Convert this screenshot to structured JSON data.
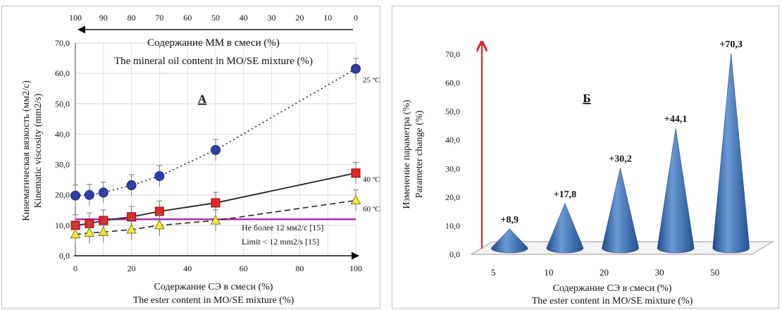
{
  "chart_data": [
    {
      "type": "line",
      "panel_label": "А",
      "x": [
        0,
        5,
        10,
        20,
        30,
        50,
        100
      ],
      "xlim": [
        0,
        100
      ],
      "ylim": [
        0,
        70
      ],
      "x_ticks": [
        "0",
        "20",
        "40",
        "60",
        "80",
        "100"
      ],
      "y_ticks": [
        "0,0",
        "10,0",
        "20,0",
        "30,0",
        "40,0",
        "50,0",
        "60,0",
        "70,0"
      ],
      "top_ticks": [
        "100",
        "90",
        "80",
        "70",
        "60",
        "50",
        "40",
        "30",
        "20",
        "10",
        "0"
      ],
      "top_axis_label": [
        "Содержание ММ в смеси (%)",
        "The mineral oil content in MO/SE mixture (%)"
      ],
      "xlabel": [
        "Содержание СЭ в смеси (%)",
        "The ester content in MO/SE mixture (%)"
      ],
      "ylabel": [
        "Кинематическая  вязкость  (мм2/с)",
        "Kinematic viscosity  (mm2/s)"
      ],
      "series": [
        {
          "name": "25 ºC",
          "values": [
            19.8,
            20.0,
            20.8,
            23.2,
            26.2,
            34.8,
            61.5
          ],
          "marker": "circle",
          "color": "#2e3fa8",
          "line": "dotted"
        },
        {
          "name": "40 ºC",
          "values": [
            10.0,
            10.6,
            11.6,
            12.8,
            14.6,
            17.4,
            27.2
          ],
          "marker": "square",
          "color": "#e32626",
          "line": "solid"
        },
        {
          "name": "60 ºC",
          "values": [
            7.0,
            7.5,
            7.8,
            8.6,
            10.0,
            11.6,
            18.2
          ],
          "marker": "triangle",
          "color": "#f2ea3a",
          "line": "dashed"
        }
      ],
      "limit_line": {
        "value": 12,
        "color": "#b02cb0",
        "label": [
          "Не более 12 мм2/с [15]",
          "Limit  < 12 mm2/s  [15]"
        ]
      },
      "grid": true
    },
    {
      "type": "bar",
      "panel_label": "Б",
      "categories": [
        "5",
        "10",
        "20",
        "30",
        "50"
      ],
      "values": [
        8.9,
        17.8,
        30.2,
        44.1,
        70.3
      ],
      "data_labels": [
        "+8,9",
        "+17,8",
        "+30,2",
        "+44,1",
        "+70,3"
      ],
      "ylim": [
        0,
        70
      ],
      "y_ticks": [
        "0,0",
        "10,0",
        "20,0",
        "30,0",
        "40,0",
        "50,0",
        "60,0",
        "70,0"
      ],
      "xlabel": [
        "Содержание СЭ в смеси (%)",
        "The ester content in MO/SE mixture (%)"
      ],
      "ylabel": [
        "Изменение параметра (%)",
        "Parameter  change  (%)"
      ],
      "bar_shape": "cone",
      "color": "#3f6fb5",
      "arrow_color": "#d42a2a",
      "grid": false
    }
  ]
}
